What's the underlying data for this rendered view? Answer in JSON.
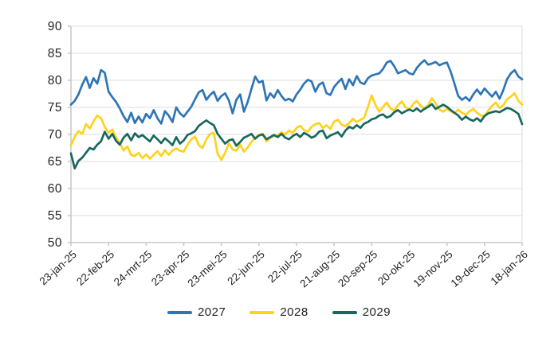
{
  "figure": {
    "background": "#FFFFFF",
    "text_color": "#1F1F1F",
    "grid_color": "#DDDDDD",
    "axis_color": "#C9C9C9"
  },
  "chart_data": {
    "type": "line",
    "title": "",
    "xlabel": "",
    "ylabel": "",
    "ylim": [
      50,
      90
    ],
    "y_ticks": [
      90,
      85,
      80,
      75,
      70,
      65,
      60,
      55,
      50
    ],
    "xlim_days": [
      0,
      360
    ],
    "x_tick_days": [
      0,
      30,
      60,
      90,
      120,
      150,
      180,
      210,
      240,
      270,
      300,
      330,
      360
    ],
    "x_tick_labels": [
      "23-jan-25",
      "22-feb-25",
      "24-mrt-25",
      "23-apr-25",
      "23-mei-25",
      "22-jun-25",
      "22-jul-25",
      "21-aug-25",
      "20-sep-25",
      "20-okt-25",
      "19-nov-25",
      "19-dec-25",
      "18-jan-26"
    ],
    "grid": true,
    "legend_position": "bottom-center",
    "x_days": [
      0,
      3,
      6,
      9,
      12,
      15,
      18,
      21,
      24,
      27,
      30,
      33,
      36,
      39,
      42,
      45,
      48,
      51,
      54,
      57,
      60,
      63,
      66,
      69,
      72,
      75,
      78,
      81,
      84,
      87,
      90,
      93,
      96,
      99,
      102,
      105,
      108,
      111,
      114,
      117,
      120,
      123,
      126,
      129,
      132,
      135,
      138,
      141,
      144,
      147,
      150,
      153,
      156,
      159,
      162,
      165,
      168,
      171,
      174,
      177,
      180,
      183,
      186,
      189,
      192,
      195,
      198,
      201,
      204,
      207,
      210,
      213,
      216,
      219,
      222,
      225,
      228,
      231,
      234,
      237,
      240,
      243,
      246,
      249,
      252,
      255,
      258,
      261,
      264,
      267,
      270,
      273,
      276,
      279,
      282,
      285,
      288,
      291,
      294,
      297,
      300,
      303,
      306,
      309,
      312,
      315,
      318,
      321,
      324,
      327,
      330,
      333,
      336,
      339,
      342,
      345,
      348,
      351,
      354,
      357,
      360
    ],
    "series": [
      {
        "name": "2027",
        "color": "#2E75B6",
        "values": [
          75.5,
          76.2,
          77.4,
          79.2,
          80.6,
          78.6,
          80.4,
          79.4,
          81.9,
          81.4,
          77.9,
          76.9,
          76.0,
          74.8,
          73.4,
          72.3,
          74.0,
          72.1,
          73.3,
          72.2,
          73.8,
          73.0,
          74.5,
          73.0,
          72.0,
          74.3,
          73.5,
          72.3,
          75.0,
          73.9,
          73.3,
          74.2,
          75.1,
          76.5,
          77.8,
          78.2,
          76.4,
          77.3,
          77.9,
          76.2,
          77.1,
          77.6,
          76.3,
          73.9,
          76.4,
          77.4,
          74.2,
          76.0,
          78.4,
          80.7,
          79.6,
          79.9,
          76.3,
          77.6,
          76.8,
          78.2,
          77.1,
          76.3,
          76.6,
          76.1,
          77.4,
          78.3,
          79.4,
          80.1,
          79.8,
          77.9,
          79.2,
          79.6,
          77.6,
          77.3,
          78.8,
          79.6,
          80.3,
          78.4,
          80.2,
          79.1,
          80.8,
          79.6,
          79.3,
          80.4,
          80.9,
          81.1,
          81.3,
          82.1,
          83.3,
          83.6,
          82.6,
          81.3,
          81.6,
          81.9,
          81.3,
          81.1,
          82.3,
          83.1,
          83.7,
          82.9,
          83.1,
          83.4,
          82.8,
          83.1,
          83.3,
          81.6,
          79.4,
          77.1,
          76.4,
          76.9,
          76.2,
          77.4,
          78.3,
          77.4,
          78.5,
          77.7,
          77.0,
          77.9,
          76.6,
          78.2,
          80.2,
          81.3,
          81.9,
          80.7,
          80.2
        ]
      },
      {
        "name": "2028",
        "color": "#FFD21E",
        "values": [
          68.0,
          69.6,
          70.6,
          70.1,
          71.9,
          71.1,
          72.4,
          73.5,
          73.0,
          71.4,
          70.3,
          70.9,
          69.4,
          68.4,
          67.0,
          67.8,
          66.2,
          66.0,
          66.6,
          65.6,
          66.3,
          65.5,
          66.2,
          66.9,
          66.0,
          67.1,
          66.2,
          67.0,
          67.4,
          67.0,
          66.8,
          68.1,
          69.1,
          69.6,
          68.0,
          67.5,
          69.1,
          70.1,
          70.3,
          66.4,
          65.3,
          66.6,
          68.4,
          67.2,
          67.0,
          68.1,
          66.8,
          67.6,
          68.6,
          69.4,
          69.9,
          70.1,
          68.7,
          69.4,
          69.7,
          69.9,
          70.4,
          70.0,
          70.7,
          70.3,
          71.2,
          71.6,
          70.8,
          70.5,
          71.4,
          71.9,
          72.1,
          71.2,
          71.7,
          71.0,
          72.4,
          72.7,
          71.8,
          71.5,
          72.1,
          72.9,
          72.3,
          72.7,
          73.1,
          75.1,
          77.2,
          75.4,
          74.2,
          75.1,
          75.9,
          74.8,
          74.4,
          75.4,
          76.1,
          75.0,
          74.6,
          75.6,
          76.2,
          75.3,
          74.8,
          75.4,
          76.7,
          75.7,
          74.6,
          74.2,
          74.7,
          74.3,
          73.9,
          74.6,
          74.0,
          73.6,
          74.3,
          74.7,
          74.0,
          73.5,
          73.4,
          74.4,
          75.3,
          75.9,
          74.9,
          75.4,
          76.5,
          77.0,
          77.6,
          76.2,
          75.5
        ]
      },
      {
        "name": "2029",
        "color": "#18685E",
        "values": [
          66.5,
          63.7,
          65.1,
          65.7,
          66.6,
          67.5,
          67.2,
          68.1,
          68.7,
          70.5,
          69.2,
          70.1,
          68.8,
          68.1,
          69.4,
          70.1,
          68.9,
          70.2,
          69.5,
          69.9,
          69.3,
          68.7,
          69.8,
          69.1,
          68.4,
          69.3,
          68.7,
          68.0,
          69.5,
          68.3,
          68.9,
          69.9,
          70.2,
          70.6,
          71.6,
          72.1,
          72.6,
          72.1,
          71.7,
          70.1,
          69.2,
          68.3,
          68.9,
          69.1,
          67.9,
          68.6,
          69.4,
          69.7,
          70.1,
          69.2,
          69.8,
          70.0,
          69.1,
          69.5,
          69.9,
          69.5,
          70.1,
          69.4,
          69.1,
          69.7,
          70.1,
          69.5,
          70.3,
          69.9,
          69.4,
          69.7,
          70.5,
          70.7,
          69.3,
          69.8,
          70.1,
          70.4,
          69.6,
          70.7,
          71.4,
          71.1,
          71.7,
          71.2,
          72.0,
          72.3,
          72.8,
          73.0,
          73.5,
          73.7,
          73.1,
          73.4,
          74.1,
          74.5,
          73.9,
          74.3,
          74.6,
          74.3,
          74.8,
          74.2,
          74.7,
          75.1,
          75.6,
          74.7,
          75.1,
          75.5,
          75.1,
          74.5,
          74.0,
          73.5,
          72.7,
          73.3,
          72.8,
          72.5,
          73.0,
          72.4,
          73.4,
          73.9,
          74.1,
          74.3,
          74.1,
          74.5,
          74.9,
          74.7,
          74.3,
          73.8,
          71.9
        ]
      }
    ]
  }
}
